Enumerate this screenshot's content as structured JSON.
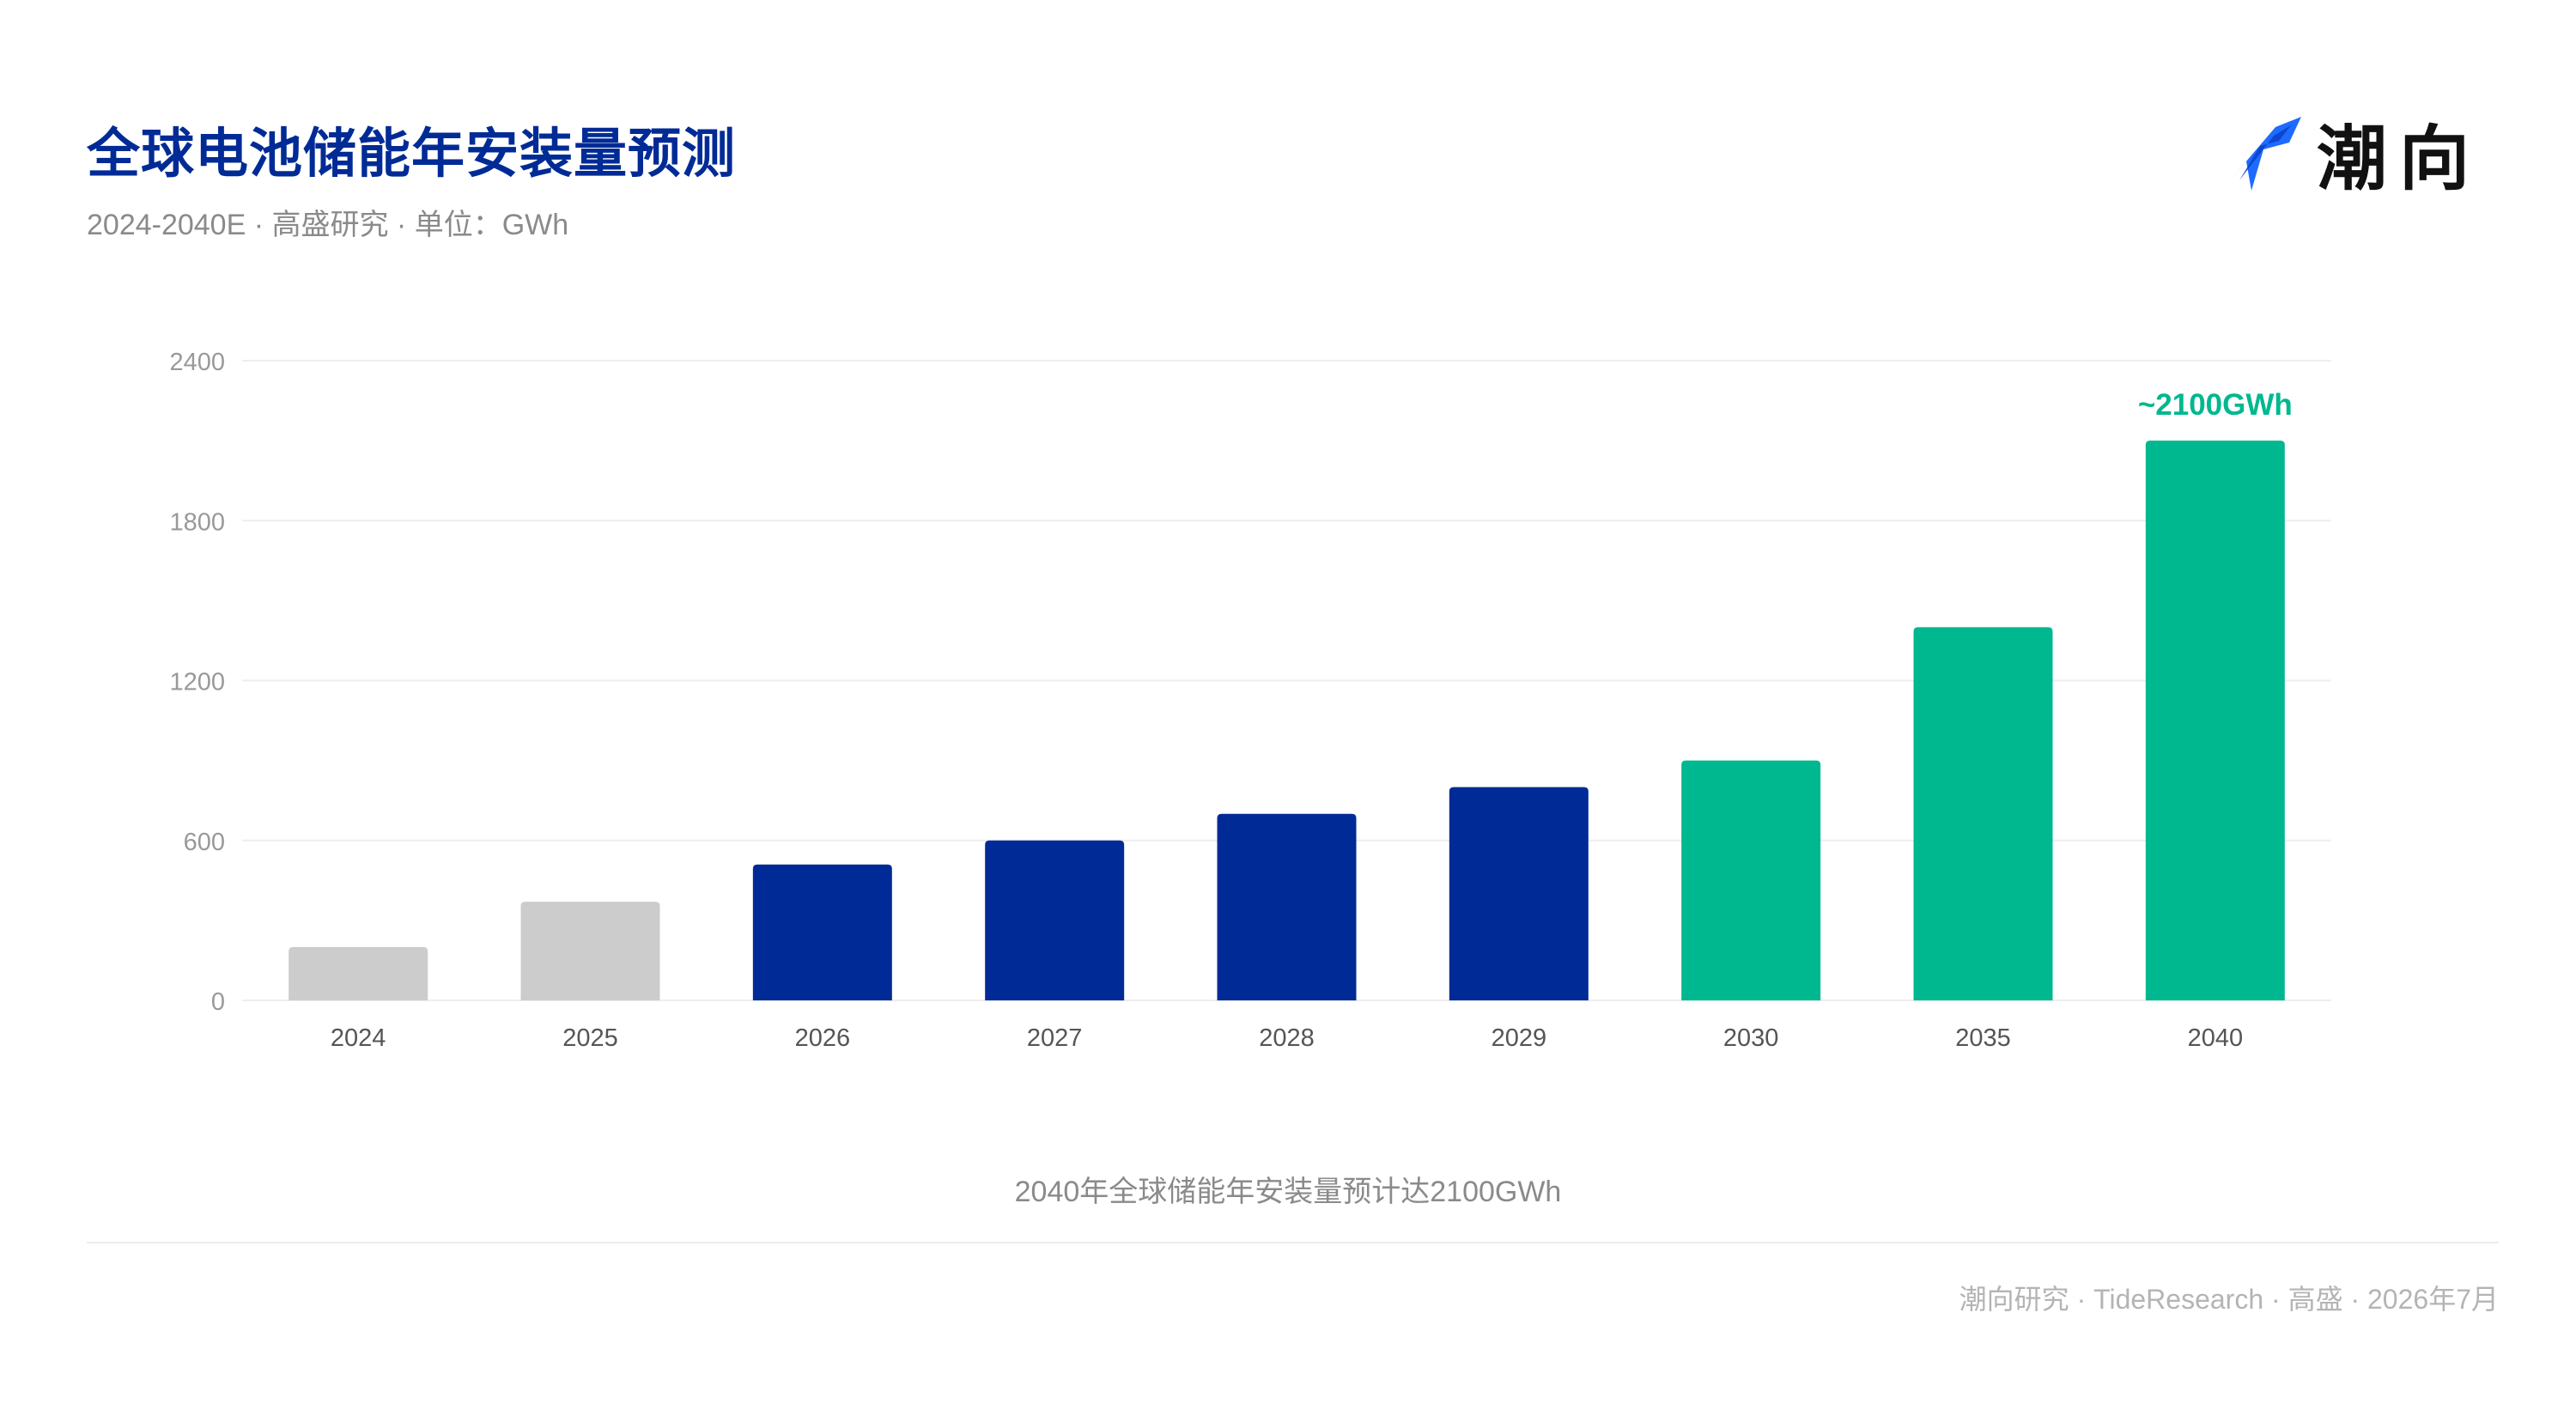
{
  "header": {
    "title": "全球电池储能年安装量预测",
    "subtitle": "2024-2040E · 高盛研究 · 单位：GWh"
  },
  "logo": {
    "text": "潮向",
    "icon": "tide-arrow-logo-icon",
    "color": "#1E6BFF"
  },
  "colors": {
    "actual": "#CCCCCC",
    "near_term": "#002B96",
    "long_term": "#00B88F",
    "grid": "#EEEEEE",
    "tick": "#999999",
    "category": "#555555",
    "annotation": "#00B88F"
  },
  "chart_data": {
    "type": "bar",
    "categories": [
      "2024",
      "2025",
      "2026",
      "2027",
      "2028",
      "2029",
      "2030",
      "2035",
      "2040"
    ],
    "values": [
      200,
      370,
      510,
      600,
      700,
      800,
      900,
      1400,
      2100
    ],
    "groups": [
      "actual",
      "actual",
      "near_term",
      "near_term",
      "near_term",
      "near_term",
      "long_term",
      "long_term",
      "long_term"
    ],
    "ylim": [
      0,
      2400
    ],
    "yticks": [
      "0",
      "600",
      "1200",
      "1800",
      "2400"
    ],
    "grid": true,
    "annotation": {
      "category": "2040",
      "text": "~2100GWh"
    }
  },
  "caption": "2040年全球储能年安装量预计达2100GWh",
  "footer": "潮向研究 · TideResearch · 高盛 · 2026年7月"
}
